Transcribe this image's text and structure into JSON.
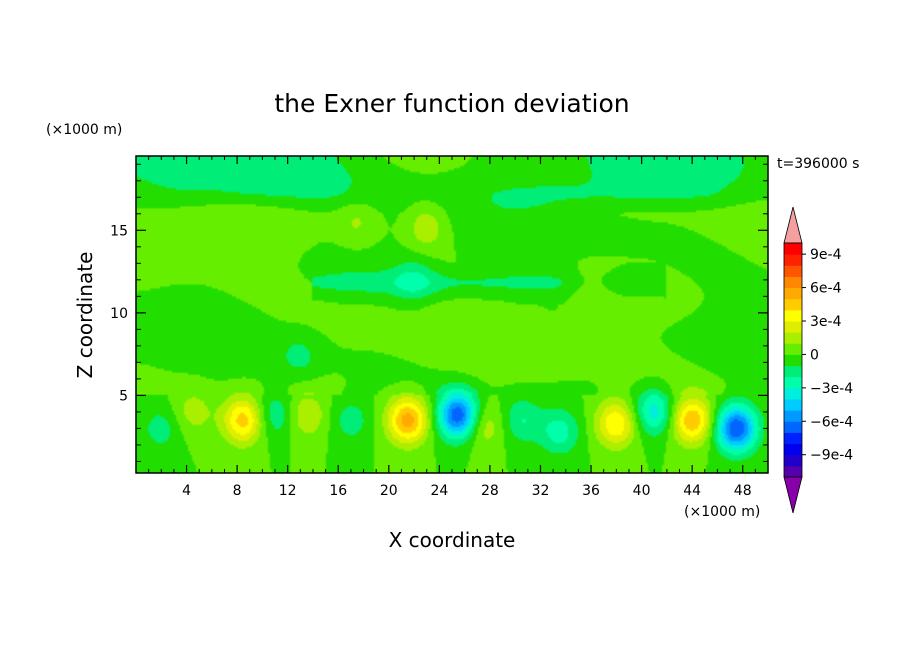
{
  "chart_data": {
    "type": "heatmap",
    "title": "the Exner function deviation",
    "xlabel": "X coordinate",
    "ylabel": "Z coordinate",
    "x_unit": "(×1000 m)",
    "y_unit": "(×1000 m)",
    "time_label": "t=396000 s",
    "xlim": [
      0,
      50
    ],
    "ylim": [
      0.3,
      19.5
    ],
    "x_ticks": [
      4,
      8,
      12,
      16,
      20,
      24,
      28,
      32,
      36,
      40,
      44,
      48
    ],
    "y_ticks": [
      5,
      10,
      15
    ],
    "colorbar": {
      "labels": [
        "9e-4",
        "6e-4",
        "3e-4",
        "0",
        "−3e-4",
        "−6e-4",
        "−9e-4"
      ],
      "label_values": [
        0.0009,
        0.0006,
        0.0003,
        0,
        -0.0003,
        -0.0006,
        -0.0009
      ],
      "levels": [
        -0.0011,
        -0.001,
        -0.0009,
        -0.0008,
        -0.0007,
        -0.0006,
        -0.0005,
        -0.0004,
        -0.0003,
        -0.0002,
        -0.0001,
        0,
        0.0001,
        0.0002,
        0.0003,
        0.0004,
        0.0005,
        0.0006,
        0.0007,
        0.0008,
        0.0009,
        0.001,
        0.0011
      ],
      "colors": [
        "#8800aa",
        "#5500aa",
        "#2200cc",
        "#0000ee",
        "#0022ff",
        "#0066ff",
        "#0099ff",
        "#00ccff",
        "#00eedd",
        "#00ffaa",
        "#00ee77",
        "#22dd00",
        "#66ee00",
        "#aaee00",
        "#ddee00",
        "#ffff00",
        "#ffcc00",
        "#ffaa00",
        "#ff8800",
        "#ff5500",
        "#ff2200",
        "#ff0000",
        "#f4a0a0"
      ]
    },
    "features": [
      {
        "x": 8.5,
        "z": 3.5,
        "value": 0.00045
      },
      {
        "x": 13.5,
        "z": 3.8,
        "value": 0.0002
      },
      {
        "x": 21.5,
        "z": 3.5,
        "value": 0.00055
      },
      {
        "x": 25.5,
        "z": 3.8,
        "value": -0.0007
      },
      {
        "x": 30.5,
        "z": 3.5,
        "value": -0.0002
      },
      {
        "x": 33.5,
        "z": 2.8,
        "value": -0.00025
      },
      {
        "x": 38.0,
        "z": 3.3,
        "value": 0.0004
      },
      {
        "x": 41.0,
        "z": 4.0,
        "value": -0.00035
      },
      {
        "x": 44.0,
        "z": 3.5,
        "value": 0.0005
      },
      {
        "x": 47.5,
        "z": 3.0,
        "value": -0.0007
      },
      {
        "x": 11.0,
        "z": 3.8,
        "value": -0.0002
      },
      {
        "x": 17.0,
        "z": 3.5,
        "value": -0.00015
      },
      {
        "x": 27.5,
        "z": 3.2,
        "value": 0.0002
      },
      {
        "x": 2.0,
        "z": 3.0,
        "value": -0.00015
      },
      {
        "x": 4.5,
        "z": 4.0,
        "value": 0.00015
      },
      {
        "x": 17.5,
        "z": 15.5,
        "value": 0.00012
      },
      {
        "x": 23.0,
        "z": 15.2,
        "value": 0.00018
      },
      {
        "x": 22.0,
        "z": 12.0,
        "value": -0.00015
      },
      {
        "x": 13.0,
        "z": 7.3,
        "value": -0.00012
      },
      {
        "x": 36.0,
        "z": 11.5,
        "value": 0.00012
      }
    ]
  }
}
